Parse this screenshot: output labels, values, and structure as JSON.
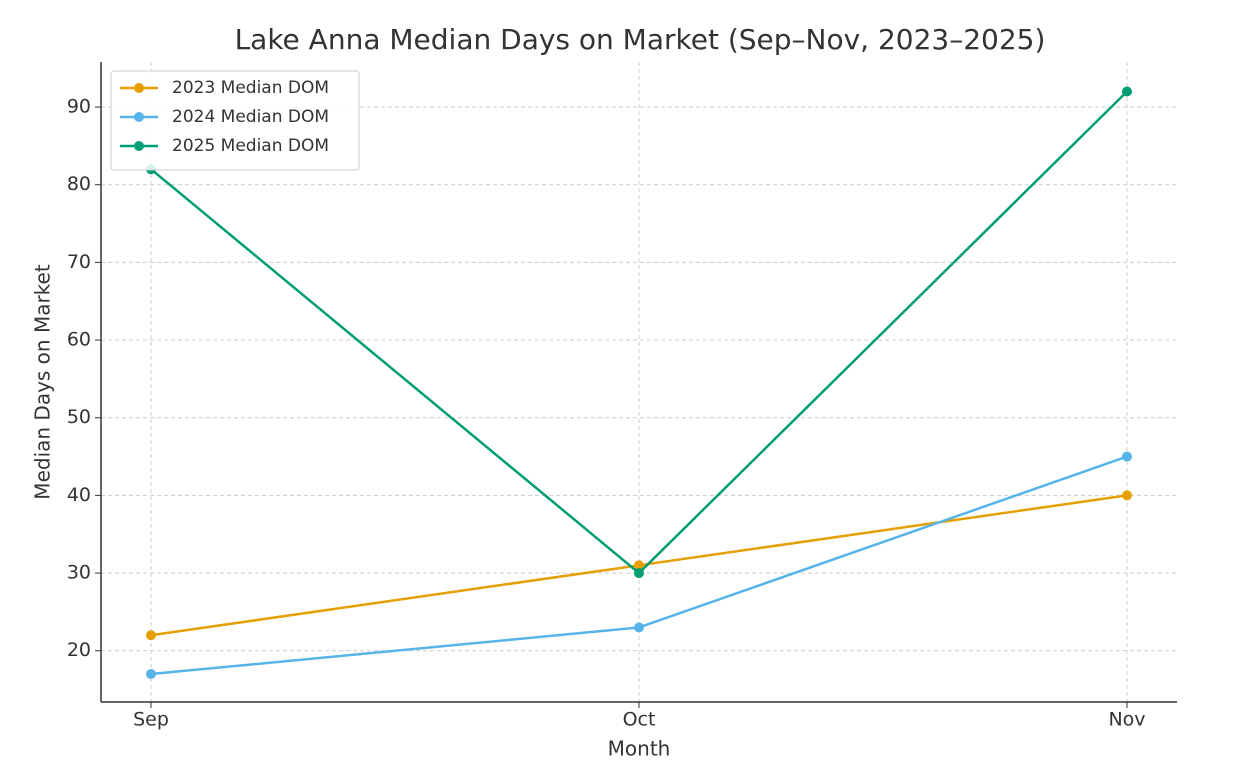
{
  "chart_data": {
    "type": "line",
    "title": "Lake Anna Median Days on Market (Sep–Nov, 2023–2025)",
    "x_label": "Month",
    "y_label": "Median Days on Market",
    "categories": [
      "Sep",
      "Oct",
      "Nov"
    ],
    "series": [
      {
        "name": "2023 Median DOM",
        "color": "#E69F00",
        "values": [
          22,
          31,
          40
        ]
      },
      {
        "name": "2024 Median DOM",
        "color": "#56B4E9",
        "values": [
          17,
          23,
          45
        ]
      },
      {
        "name": "2025 Median DOM",
        "color": "#009E73",
        "values": [
          82,
          30,
          92
        ]
      }
    ],
    "ylim": [
      13.4,
      95.8
    ],
    "yticks": [
      20,
      30,
      40,
      50,
      60,
      70,
      80,
      90
    ],
    "grid": true,
    "legend": "upper-left"
  }
}
